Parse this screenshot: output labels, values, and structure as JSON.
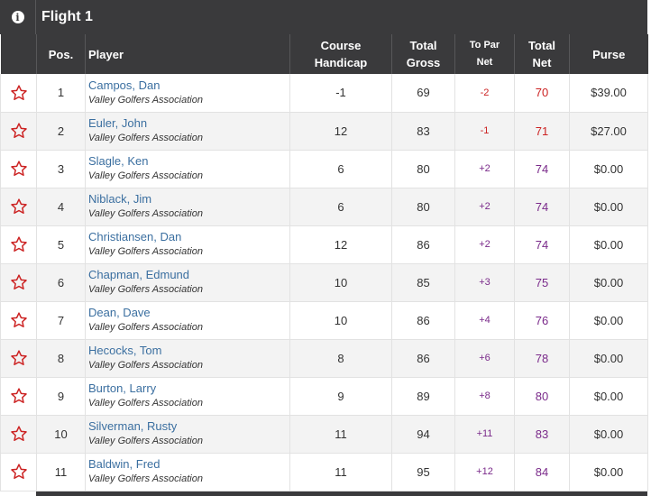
{
  "flight": {
    "title": "Flight 1",
    "info_icon": "info-icon"
  },
  "columns": {
    "pos": "Pos.",
    "player": "Player",
    "course_line1": "Course",
    "course_line2": "Handicap",
    "gross_line1": "Total",
    "gross_line2": "Gross",
    "topar_line1": "To Par",
    "topar_line2": "Net",
    "net_line1": "Total",
    "net_line2": "Net",
    "purse": "Purse"
  },
  "colors": {
    "header_bg": "#3a3a3c",
    "star": "#cc2222",
    "link": "#3b6fa0",
    "under_par": "#cc2222",
    "over_par": "#7a2a8a"
  },
  "rows": [
    {
      "pos": "1",
      "name": "Campos, Dan",
      "assoc": "Valley Golfers Association",
      "handicap": "-1",
      "gross": "69",
      "to_par": "-2",
      "net": "70",
      "purse": "$39.00"
    },
    {
      "pos": "2",
      "name": "Euler, John",
      "assoc": "Valley Golfers Association",
      "handicap": "12",
      "gross": "83",
      "to_par": "-1",
      "net": "71",
      "purse": "$27.00"
    },
    {
      "pos": "3",
      "name": "Slagle, Ken",
      "assoc": "Valley Golfers Association",
      "handicap": "6",
      "gross": "80",
      "to_par": "+2",
      "net": "74",
      "purse": "$0.00"
    },
    {
      "pos": "4",
      "name": "Niblack, Jim",
      "assoc": "Valley Golfers Association",
      "handicap": "6",
      "gross": "80",
      "to_par": "+2",
      "net": "74",
      "purse": "$0.00"
    },
    {
      "pos": "5",
      "name": "Christiansen, Dan",
      "assoc": "Valley Golfers Association",
      "handicap": "12",
      "gross": "86",
      "to_par": "+2",
      "net": "74",
      "purse": "$0.00"
    },
    {
      "pos": "6",
      "name": "Chapman, Edmund",
      "assoc": "Valley Golfers Association",
      "handicap": "10",
      "gross": "85",
      "to_par": "+3",
      "net": "75",
      "purse": "$0.00"
    },
    {
      "pos": "7",
      "name": "Dean, Dave",
      "assoc": "Valley Golfers Association",
      "handicap": "10",
      "gross": "86",
      "to_par": "+4",
      "net": "76",
      "purse": "$0.00"
    },
    {
      "pos": "8",
      "name": "Hecocks, Tom",
      "assoc": "Valley Golfers Association",
      "handicap": "8",
      "gross": "86",
      "to_par": "+6",
      "net": "78",
      "purse": "$0.00"
    },
    {
      "pos": "9",
      "name": "Burton, Larry",
      "assoc": "Valley Golfers Association",
      "handicap": "9",
      "gross": "89",
      "to_par": "+8",
      "net": "80",
      "purse": "$0.00"
    },
    {
      "pos": "10",
      "name": "Silverman, Rusty",
      "assoc": "Valley Golfers Association",
      "handicap": "11",
      "gross": "94",
      "to_par": "+11",
      "net": "83",
      "purse": "$0.00"
    },
    {
      "pos": "11",
      "name": "Baldwin, Fred",
      "assoc": "Valley Golfers Association",
      "handicap": "11",
      "gross": "95",
      "to_par": "+12",
      "net": "84",
      "purse": "$0.00"
    }
  ]
}
